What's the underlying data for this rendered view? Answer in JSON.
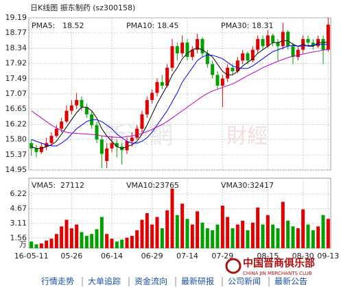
{
  "header": {
    "title": "日K线图 振东制药 (sz300158)"
  },
  "watermark": [
    "新浪網",
    "財經"
  ],
  "chart_data": [
    {
      "type": "candlestick",
      "categories": [
        "16-05-11",
        null,
        null,
        null,
        null,
        null,
        null,
        null,
        "05-26",
        null,
        null,
        null,
        null,
        null,
        null,
        null,
        "06-14",
        null,
        null,
        null,
        null,
        null,
        null,
        null,
        "06-29",
        null,
        null,
        null,
        null,
        null,
        null,
        "07-14",
        null,
        null,
        null,
        null,
        null,
        null,
        "07-29",
        null,
        null,
        null,
        null,
        null,
        null,
        null,
        null,
        "08-15",
        null,
        null,
        null,
        null,
        null,
        null,
        "08-30",
        null,
        null,
        null,
        null,
        "09-13"
      ],
      "candles": [
        [
          15.7,
          15.8,
          15.35,
          15.55
        ],
        [
          15.55,
          15.65,
          15.3,
          15.45
        ],
        [
          15.45,
          15.7,
          15.4,
          15.6
        ],
        [
          15.6,
          15.85,
          15.5,
          15.7
        ],
        [
          15.7,
          16.0,
          15.65,
          15.9
        ],
        [
          15.9,
          16.2,
          15.85,
          16.1
        ],
        [
          16.1,
          16.4,
          16.0,
          16.3
        ],
        [
          16.3,
          16.75,
          16.25,
          16.6
        ],
        [
          16.6,
          16.9,
          16.5,
          16.75
        ],
        [
          16.75,
          17.1,
          16.65,
          16.9
        ],
        [
          16.9,
          17.0,
          16.6,
          16.7
        ],
        [
          16.7,
          16.8,
          16.4,
          16.5
        ],
        [
          16.5,
          16.6,
          16.1,
          16.2
        ],
        [
          16.2,
          16.3,
          15.7,
          15.8
        ],
        [
          15.8,
          15.9,
          15.0,
          15.4
        ],
        [
          15.2,
          15.7,
          15.0,
          15.55
        ],
        [
          15.55,
          15.9,
          15.45,
          15.7
        ],
        [
          15.7,
          15.8,
          15.3,
          15.6
        ],
        [
          15.6,
          15.7,
          15.1,
          15.5
        ],
        [
          15.5,
          15.85,
          15.4,
          15.75
        ],
        [
          15.75,
          16.0,
          15.6,
          15.85
        ],
        [
          15.85,
          16.2,
          15.8,
          16.1
        ],
        [
          16.1,
          16.6,
          16.0,
          16.5
        ],
        [
          16.5,
          17.0,
          16.4,
          16.9
        ],
        [
          16.9,
          17.2,
          16.8,
          17.1
        ],
        [
          17.1,
          17.5,
          17.0,
          17.4
        ],
        [
          17.4,
          17.6,
          17.2,
          17.3
        ],
        [
          17.3,
          17.9,
          17.25,
          17.8
        ],
        [
          17.8,
          18.6,
          17.7,
          18.4
        ],
        [
          18.4,
          18.5,
          18.0,
          18.2
        ],
        [
          18.2,
          18.7,
          18.1,
          18.5
        ],
        [
          18.5,
          18.6,
          18.0,
          18.1
        ],
        [
          18.1,
          18.4,
          18.0,
          18.3
        ],
        [
          18.3,
          18.75,
          18.2,
          18.6
        ],
        [
          18.6,
          18.65,
          18.1,
          18.2
        ],
        [
          18.2,
          18.3,
          17.8,
          17.9
        ],
        [
          17.9,
          18.0,
          17.5,
          17.6
        ],
        [
          17.6,
          17.7,
          17.2,
          17.3
        ],
        [
          17.3,
          17.6,
          16.7,
          17.5
        ],
        [
          17.5,
          17.9,
          17.4,
          17.8
        ],
        [
          17.8,
          17.9,
          17.6,
          17.7
        ],
        [
          17.7,
          18.1,
          17.65,
          18.0
        ],
        [
          18.0,
          18.3,
          17.9,
          18.2
        ],
        [
          18.2,
          18.25,
          17.9,
          18.0
        ],
        [
          18.0,
          18.4,
          17.95,
          18.3
        ],
        [
          18.3,
          18.7,
          18.2,
          18.6
        ],
        [
          18.6,
          18.7,
          18.3,
          18.4
        ],
        [
          18.4,
          18.85,
          18.35,
          18.7
        ],
        [
          18.7,
          18.75,
          18.4,
          18.5
        ],
        [
          18.5,
          18.6,
          18.0,
          18.4
        ],
        [
          18.4,
          19.05,
          18.3,
          18.8
        ],
        [
          18.8,
          18.85,
          18.3,
          18.4
        ],
        [
          18.4,
          18.5,
          17.9,
          18.1
        ],
        [
          18.1,
          18.4,
          18.0,
          18.3
        ],
        [
          18.3,
          18.7,
          18.2,
          18.6
        ],
        [
          18.6,
          18.7,
          18.4,
          18.5
        ],
        [
          18.5,
          18.6,
          18.3,
          18.4
        ],
        [
          18.4,
          18.7,
          18.35,
          18.6
        ],
        [
          18.6,
          18.7,
          17.9,
          18.3
        ],
        [
          18.3,
          19.19,
          18.25,
          19.0
        ]
      ],
      "up_color": "#e00000",
      "down_color": "#00a000",
      "series": [
        {
          "name": "PMA5:",
          "last": 18.52,
          "color": "#000000",
          "values": [
            15.6,
            15.55,
            15.55,
            15.6,
            15.65,
            15.75,
            15.95,
            16.15,
            16.35,
            16.55,
            16.7,
            16.7,
            16.6,
            16.4,
            16.1,
            15.9,
            15.75,
            15.6,
            15.55,
            15.6,
            15.65,
            15.75,
            15.95,
            16.2,
            16.5,
            16.8,
            17.05,
            17.3,
            17.6,
            17.8,
            18.05,
            18.2,
            18.3,
            18.35,
            18.3,
            18.2,
            18.1,
            17.9,
            17.7,
            17.6,
            17.6,
            17.7,
            17.85,
            17.95,
            18.05,
            18.2,
            18.3,
            18.4,
            18.5,
            18.5,
            18.55,
            18.55,
            18.45,
            18.4,
            18.45,
            18.4,
            18.4,
            18.5,
            18.5,
            18.52
          ]
        },
        {
          "name": "PMA10:",
          "last": 18.45,
          "color": "#0000ff",
          "values": [
            15.8,
            15.75,
            15.7,
            15.65,
            15.62,
            15.62,
            15.7,
            15.8,
            15.95,
            16.1,
            16.2,
            16.3,
            16.35,
            16.35,
            16.3,
            16.2,
            16.1,
            15.95,
            15.85,
            15.75,
            15.7,
            15.7,
            15.75,
            15.85,
            16.0,
            16.2,
            16.4,
            16.6,
            16.85,
            17.1,
            17.4,
            17.6,
            17.8,
            18.0,
            18.1,
            18.15,
            18.15,
            18.1,
            18.05,
            17.95,
            17.85,
            17.8,
            17.78,
            17.78,
            17.85,
            17.95,
            18.05,
            18.15,
            18.25,
            18.3,
            18.35,
            18.4,
            18.42,
            18.4,
            18.4,
            18.42,
            18.42,
            18.45,
            18.45,
            18.45
          ]
        },
        {
          "name": "PMA30:",
          "last": 18.31,
          "color": "#c000c0",
          "values": [
            16.6,
            16.5,
            16.4,
            16.3,
            16.2,
            16.12,
            16.05,
            16.0,
            15.98,
            15.97,
            15.96,
            15.95,
            15.94,
            15.93,
            15.9,
            15.88,
            15.87,
            15.86,
            15.86,
            15.88,
            15.9,
            15.93,
            15.97,
            16.02,
            16.08,
            16.15,
            16.22,
            16.3,
            16.4,
            16.5,
            16.6,
            16.7,
            16.8,
            16.9,
            17.0,
            17.08,
            17.15,
            17.2,
            17.25,
            17.3,
            17.35,
            17.42,
            17.5,
            17.58,
            17.65,
            17.72,
            17.8,
            17.86,
            17.92,
            17.98,
            18.03,
            18.08,
            18.12,
            18.15,
            18.18,
            18.21,
            18.24,
            18.26,
            18.29,
            18.31
          ]
        }
      ],
      "ylim": [
        14.95,
        19.19
      ],
      "yticks": [
        14.95,
        15.37,
        {
          "value": 15.8,
          "label": "15.80"
        },
        16.22,
        16.65,
        17.07,
        17.49,
        17.92,
        18.34,
        18.77,
        19.19
      ],
      "grid": true
    },
    {
      "type": "bar",
      "unit": "万",
      "values": [
        1.2,
        0.9,
        1.0,
        1.3,
        1.5,
        2.0,
        2.8,
        3.5,
        2.6,
        3.0,
        2.2,
        1.8,
        2.0,
        2.5,
        3.8,
        2.0,
        1.5,
        1.2,
        1.4,
        1.6,
        1.8,
        2.4,
        3.5,
        4.2,
        3.0,
        3.8,
        2.6,
        4.5,
        6.8,
        4.0,
        5.2,
        3.6,
        3.0,
        4.4,
        3.2,
        2.6,
        2.4,
        3.0,
        5.0,
        3.8,
        2.6,
        3.0,
        3.4,
        2.4,
        3.2,
        4.8,
        3.0,
        4.0,
        3.0,
        2.6,
        5.4,
        3.4,
        2.8,
        2.6,
        4.6,
        3.0,
        2.4,
        2.8,
        4.0,
        3.6
      ],
      "legend": [
        {
          "name": "VMA5:",
          "last": 27112,
          "color": "#000000"
        },
        {
          "name": "VMA10:",
          "last": 23765,
          "color": "#0000ff"
        },
        {
          "name": "VMA30:",
          "last": 32417,
          "color": "#c000c0"
        }
      ],
      "ylim": [
        0.5,
        7.9
      ],
      "yticks": [
        1.56,
        3.11,
        4.67,
        6.22
      ],
      "grid": true
    }
  ],
  "logo": {
    "name": "中国晋商俱乐部",
    "subtitle": "CHINA JIN MERCHANTS CLUB"
  },
  "nav": [
    "行情走势",
    "大单追踪",
    "资金流向",
    "最新研报",
    "公司新闻",
    "最新公告"
  ]
}
